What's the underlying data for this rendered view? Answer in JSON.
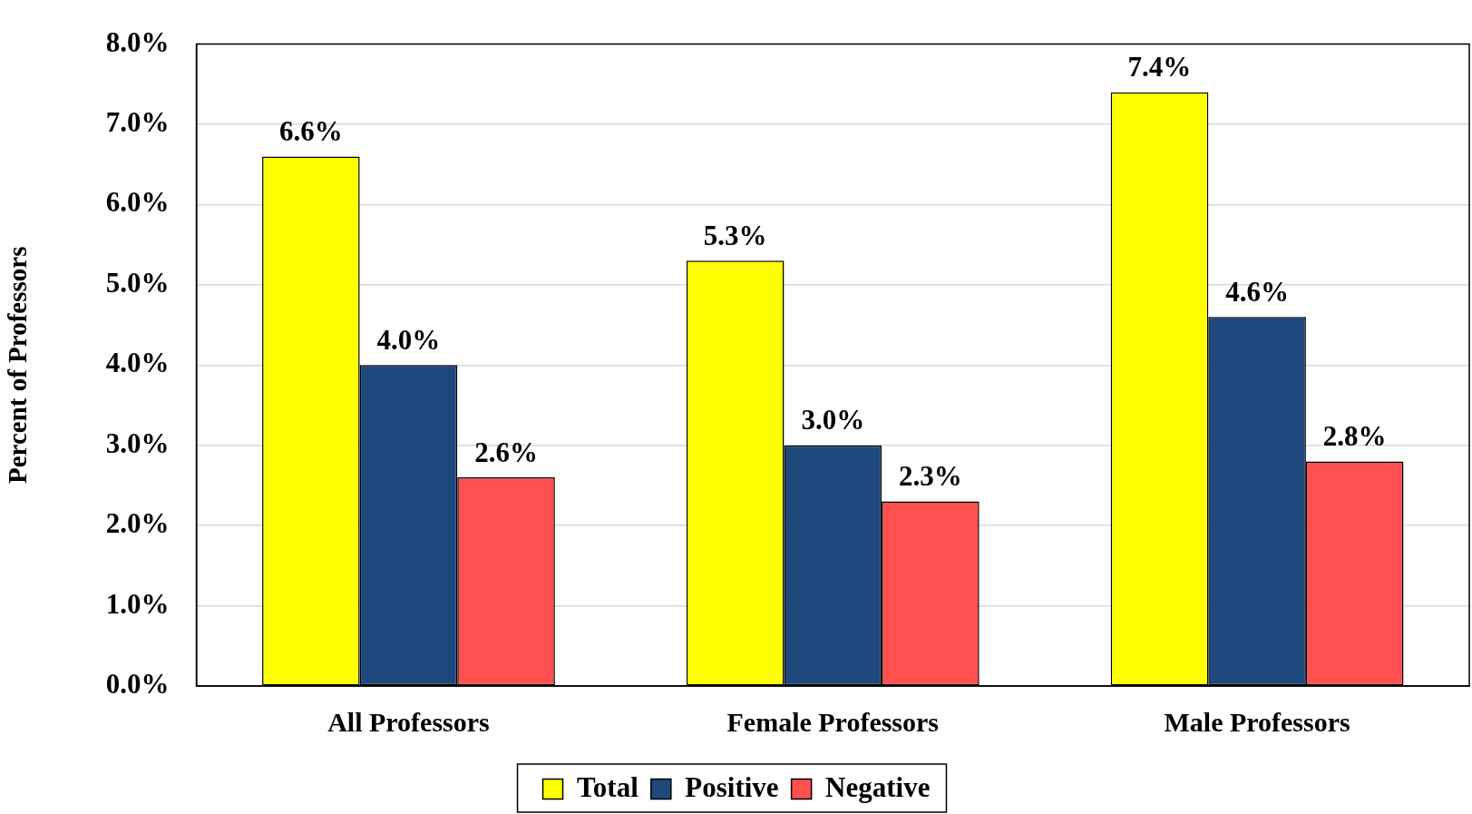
{
  "chart_data": {
    "type": "bar",
    "ylabel": "Percent of Professors",
    "categories": [
      "All Professors",
      "Female Professors",
      "Male Professors"
    ],
    "series": [
      {
        "name": "Total",
        "color": "#ffff00",
        "values": [
          6.6,
          5.3,
          7.4
        ],
        "value_labels": [
          "6.6%",
          "5.3%",
          "7.4%"
        ]
      },
      {
        "name": "Positive",
        "color": "#1f497d",
        "values": [
          4.0,
          3.0,
          4.6
        ],
        "value_labels": [
          "4.0%",
          "3.0%",
          "4.6%"
        ]
      },
      {
        "name": "Negative",
        "color": "#ff5050",
        "values": [
          2.6,
          2.3,
          2.8
        ],
        "value_labels": [
          "2.6%",
          "2.3%",
          "2.8%"
        ]
      }
    ],
    "ylim": [
      0,
      8
    ],
    "yticks": [
      {
        "value": 0,
        "label": "0.0%"
      },
      {
        "value": 1,
        "label": "1.0%"
      },
      {
        "value": 2,
        "label": "2.0%"
      },
      {
        "value": 3,
        "label": "3.0%"
      },
      {
        "value": 4,
        "label": "4.0%"
      },
      {
        "value": 5,
        "label": "5.0%"
      },
      {
        "value": 6,
        "label": "6.0%"
      },
      {
        "value": 7,
        "label": "7.0%"
      },
      {
        "value": 8,
        "label": "8.0%"
      }
    ],
    "grid": "y",
    "legend": "bottom"
  }
}
